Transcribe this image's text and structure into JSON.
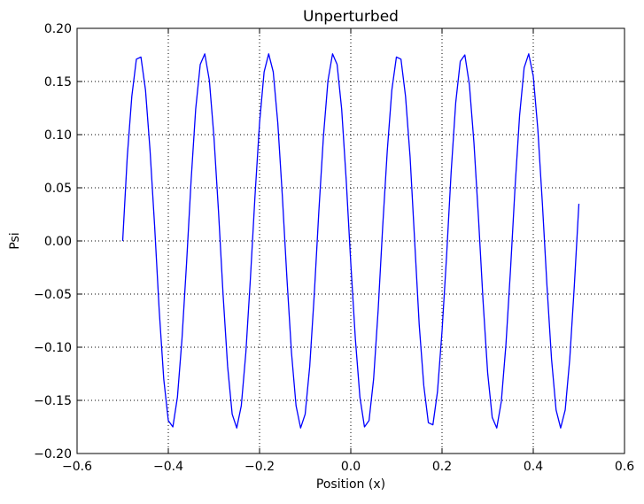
{
  "chart_data": {
    "type": "line",
    "title": "Unperturbed",
    "xlabel": "Position (x)",
    "ylabel": "Psi",
    "xlim": [
      -0.6,
      0.6
    ],
    "ylim": [
      -0.2,
      0.2
    ],
    "x_ticks": [
      -0.6,
      -0.4,
      -0.2,
      0.0,
      0.2,
      0.4,
      0.6
    ],
    "x_tick_labels": [
      "−0.6",
      "−0.4",
      "−0.2",
      "0.0",
      "0.2",
      "0.4",
      "0.6"
    ],
    "y_ticks": [
      -0.2,
      -0.15,
      -0.1,
      -0.05,
      0.0,
      0.05,
      0.1,
      0.15,
      0.2
    ],
    "y_tick_labels": [
      "−0.20",
      "−0.15",
      "−0.10",
      "−0.05",
      "0.00",
      "0.05",
      "0.10",
      "0.15",
      "0.20"
    ],
    "grid": true,
    "series": [
      {
        "color": "#0000ff",
        "x": [
          -0.5,
          -0.49,
          -0.48,
          -0.47,
          -0.46,
          -0.45,
          -0.44,
          -0.43,
          -0.42,
          -0.41,
          -0.4,
          -0.39,
          -0.38,
          -0.37,
          -0.36,
          -0.35,
          -0.34,
          -0.33,
          -0.32,
          -0.31,
          -0.3,
          -0.29,
          -0.28,
          -0.27,
          -0.26,
          -0.25,
          -0.24,
          -0.23,
          -0.22,
          -0.21,
          -0.2,
          -0.19,
          -0.18,
          -0.17,
          -0.16,
          -0.15,
          -0.14,
          -0.13,
          -0.12,
          -0.11,
          -0.1,
          -0.09,
          -0.08,
          -0.07,
          -0.06,
          -0.05,
          -0.04,
          -0.03,
          -0.02,
          -0.01,
          0.0,
          0.01,
          0.02,
          0.03,
          0.04,
          0.05,
          0.06,
          0.07,
          0.08,
          0.09,
          0.1,
          0.11,
          0.12,
          0.13,
          0.14,
          0.15,
          0.16,
          0.17,
          0.18,
          0.19,
          0.2,
          0.21,
          0.22,
          0.23,
          0.24,
          0.25,
          0.26,
          0.27,
          0.28,
          0.29,
          0.3,
          0.31,
          0.32,
          0.33,
          0.34,
          0.35,
          0.36,
          0.37,
          0.38,
          0.39,
          0.4,
          0.41,
          0.42,
          0.43,
          0.44,
          0.45,
          0.46,
          0.47,
          0.48,
          0.49,
          0.5
        ],
        "y": [
          0.0,
          0.079,
          0.136,
          0.171,
          0.173,
          0.142,
          0.085,
          0.014,
          -0.065,
          -0.13,
          -0.169,
          -0.175,
          -0.147,
          -0.092,
          -0.021,
          0.057,
          0.124,
          0.166,
          0.176,
          0.151,
          0.098,
          0.028,
          -0.05,
          -0.118,
          -0.163,
          -0.176,
          -0.155,
          -0.105,
          -0.035,
          0.042,
          0.111,
          0.159,
          0.176,
          0.159,
          0.111,
          0.042,
          -0.035,
          -0.105,
          -0.155,
          -0.176,
          -0.163,
          -0.118,
          -0.05,
          0.028,
          0.098,
          0.151,
          0.176,
          0.166,
          0.124,
          0.057,
          -0.021,
          -0.092,
          -0.147,
          -0.175,
          -0.169,
          -0.13,
          -0.065,
          0.014,
          0.085,
          0.142,
          0.173,
          0.171,
          0.136,
          0.079,
          0.0,
          -0.079,
          -0.136,
          -0.171,
          -0.173,
          -0.142,
          -0.085,
          -0.014,
          0.065,
          0.13,
          0.169,
          0.175,
          0.147,
          0.092,
          0.021,
          -0.057,
          -0.124,
          -0.166,
          -0.176,
          -0.151,
          -0.098,
          -0.028,
          0.05,
          0.118,
          0.163,
          0.176,
          0.155,
          0.105,
          0.035,
          -0.042,
          -0.111,
          -0.159,
          -0.176,
          -0.159,
          -0.111,
          -0.042,
          0.035
        ]
      }
    ]
  }
}
